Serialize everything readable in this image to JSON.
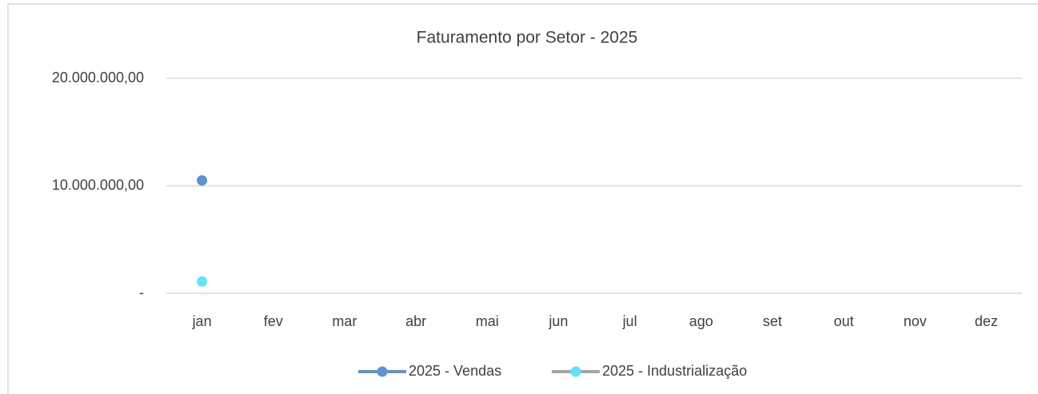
{
  "chart_data": {
    "type": "line",
    "title": "Faturamento por Setor - 2025",
    "categories": [
      "jan",
      "fev",
      "mar",
      "abr",
      "mai",
      "jun",
      "jul",
      "ago",
      "set",
      "out",
      "nov",
      "dez"
    ],
    "series": [
      {
        "name": "2025 - Vendas",
        "color": "#5b93d3",
        "line_color": "#5b93d3",
        "values": [
          10500000,
          null,
          null,
          null,
          null,
          null,
          null,
          null,
          null,
          null,
          null,
          null
        ]
      },
      {
        "name": "2025 - Industrialização",
        "color": "#5ee4f5",
        "line_color": "#a5a5a5",
        "values": [
          1100000,
          null,
          null,
          null,
          null,
          null,
          null,
          null,
          null,
          null,
          null,
          null
        ]
      }
    ],
    "ylim": [
      0,
      20000000
    ],
    "yticks": [
      {
        "value": 0,
        "label": "-"
      },
      {
        "value": 10000000,
        "label": "10.000.000,00"
      },
      {
        "value": 20000000,
        "label": "20.000.000,00"
      }
    ],
    "grid": true,
    "legend": "bottom"
  }
}
